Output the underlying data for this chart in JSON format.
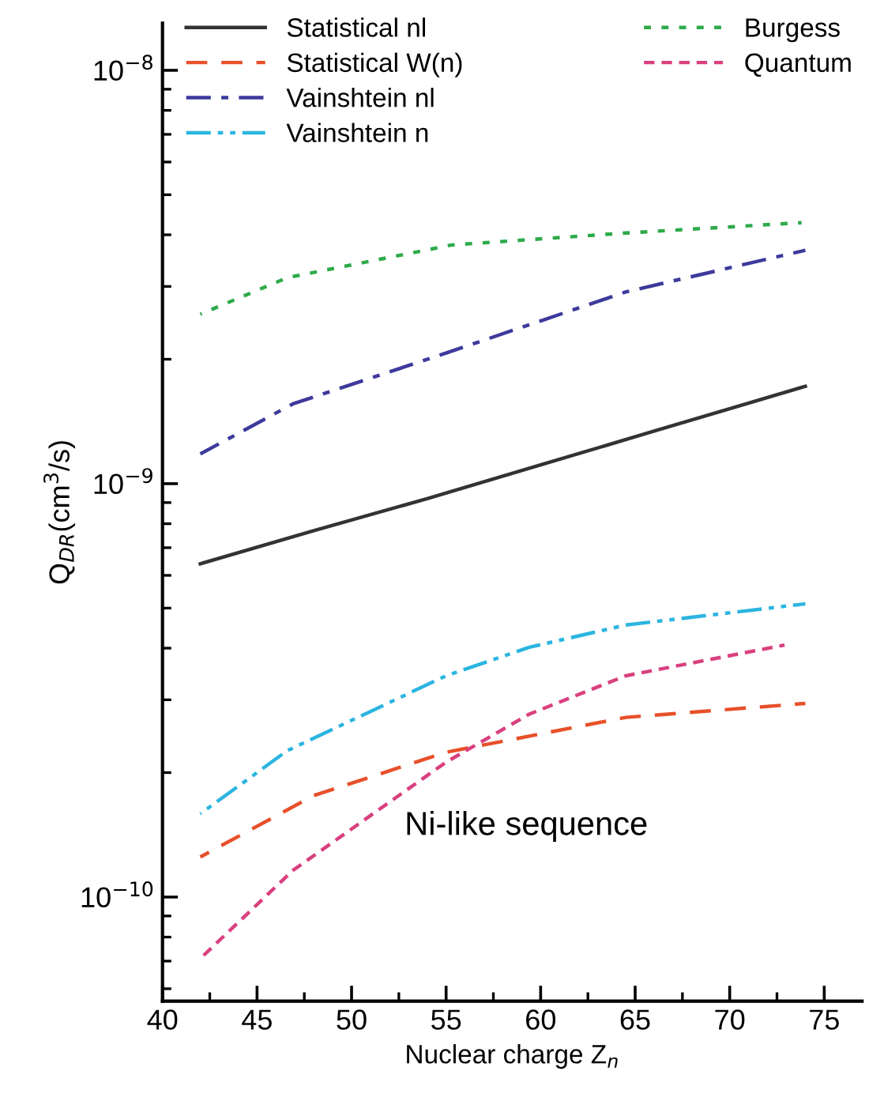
{
  "chart_data": {
    "type": "line",
    "xlabel": "Nuclear charge Z$_{n}$",
    "ylabel": "Q$_{DR}$(cm$^{3}$/s)",
    "log": "y",
    "xlim": [
      40,
      77
    ],
    "xticks": [
      40,
      45,
      50,
      55,
      60,
      65,
      70,
      75
    ],
    "ylim": [
      5.6e-11,
      1.3e-08
    ],
    "yticks": [
      {
        "value": 1e-10,
        "label": "10$^{−10}$"
      },
      {
        "value": 1e-09,
        "label": "10$^{−9}$"
      },
      {
        "value": 1e-08,
        "label": "10$^{−8}$"
      }
    ],
    "grid": false,
    "legend": "top",
    "marker": "none",
    "annotations": [
      "Ni-like sequence"
    ],
    "series": [
      {
        "name": "Statistical nl",
        "color": "#333333",
        "line_style": "solid",
        "x": [
          42,
          48,
          54,
          60,
          66,
          74
        ],
        "values": [
          6.4e-10,
          7.7e-10,
          9.2e-10,
          1.11e-09,
          1.34e-09,
          1.72e-09
        ]
      },
      {
        "name": "Statistical W(n)",
        "color": "#e8502a",
        "line_style": "dashed",
        "x": [
          42,
          48,
          55,
          64.5,
          74
        ],
        "values": [
          1.25e-10,
          1.76e-10,
          2.24e-10,
          2.72e-10,
          2.94e-10
        ]
      },
      {
        "name": "Vainshtein nl",
        "color": "#3d3a9c",
        "line_style": "dashdot",
        "x": [
          42,
          46.9,
          55,
          64.5,
          74
        ],
        "values": [
          1.18e-09,
          1.56e-09,
          2.07e-09,
          2.91e-09,
          3.67e-09
        ]
      },
      {
        "name": "Vainshtein n",
        "color": "#2bb5e0",
        "line_style": "dashdotdot",
        "x": [
          42,
          46.6,
          55,
          59.4,
          64.5,
          74
        ],
        "values": [
          1.59e-10,
          2.26e-10,
          3.43e-10,
          4.02e-10,
          4.55e-10,
          5.12e-10
        ]
      },
      {
        "name": "Burgess",
        "color": "#2eaa4a",
        "line_style": "dotted",
        "x": [
          42,
          46.6,
          55.3,
          64.5,
          73.8
        ],
        "values": [
          2.57e-09,
          3.15e-09,
          3.78e-09,
          4.04e-09,
          4.28e-09
        ]
      },
      {
        "name": "Quantum",
        "color": "#d9407f",
        "line_style": "shortdash",
        "x": [
          42,
          46.9,
          55,
          59.4,
          64.5,
          72.9
        ],
        "values": [
          7.1e-11,
          1.16e-10,
          2.12e-10,
          2.77e-10,
          3.43e-10,
          4.07e-10
        ]
      }
    ]
  }
}
